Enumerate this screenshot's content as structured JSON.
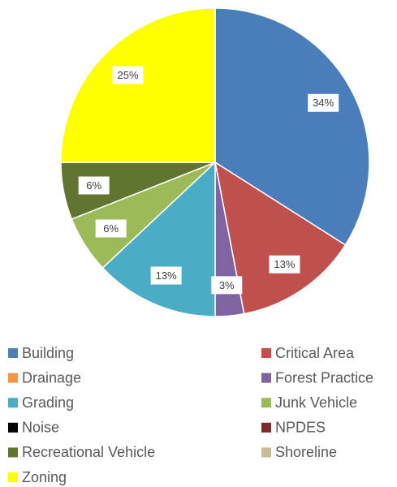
{
  "chart_data": {
    "type": "pie",
    "categories": [
      "Building",
      "Critical Area",
      "Drainage",
      "Forest Practice",
      "Grading",
      "Junk Vehicle",
      "Noise",
      "NPDES",
      "Recreational Vehicle",
      "Shoreline",
      "Zoning"
    ],
    "values": [
      34,
      13,
      0,
      3,
      13,
      6,
      0,
      0,
      6,
      0,
      25
    ],
    "value_labels": [
      "34%",
      "13%",
      null,
      "3%",
      "13%",
      "6%",
      null,
      null,
      "6%",
      null,
      "25%"
    ],
    "colors": [
      "#4a7ebb",
      "#c0504d",
      "#f79646",
      "#8064a2",
      "#4bacc6",
      "#9bbb59",
      "#000000",
      "#772c2a",
      "#5f7530",
      "#c4bd97",
      "#ffff00"
    ],
    "legend": "bottom"
  }
}
